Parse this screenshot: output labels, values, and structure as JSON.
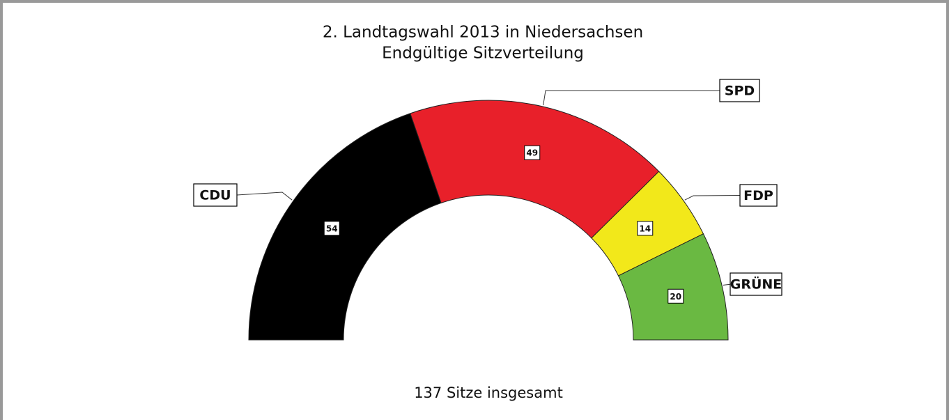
{
  "chart_data": {
    "type": "half-donut",
    "title": "2. Landtagswahl 2013 in Niedersachsen",
    "subtitle": "Endgültige Sitzverteilung",
    "footer": "137 Sitze insgesamt",
    "categories": [
      "CDU",
      "SPD",
      "FDP",
      "GRÜNE"
    ],
    "values": [
      54,
      49,
      14,
      20
    ],
    "colors": [
      "#000000",
      "#e8202a",
      "#f2e81a",
      "#6ab942"
    ]
  }
}
